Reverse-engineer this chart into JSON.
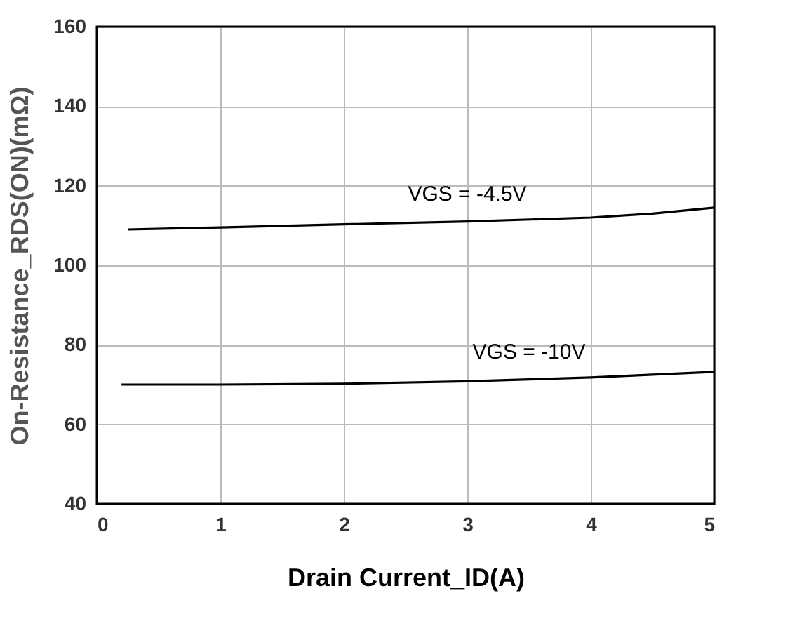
{
  "chart_data": {
    "type": "line",
    "xlabel": "Drain Current_ID(A)",
    "ylabel": "On-Resistance_RDS(ON)(mΩ)",
    "xlim": [
      0,
      5
    ],
    "xticks": [
      0,
      1,
      2,
      3,
      4,
      5
    ],
    "ylim": [
      40,
      160
    ],
    "yticks": [
      40,
      60,
      80,
      100,
      120,
      140,
      160
    ],
    "grid": true,
    "marker": "none",
    "line_style": "solid",
    "series": [
      {
        "color": "#000000",
        "x": [
          0.25,
          1,
          2,
          3,
          4,
          4.5,
          5
        ],
        "values": [
          109,
          109.5,
          110.3,
          111,
          112,
          113,
          114.5
        ]
      },
      {
        "color": "#000000",
        "x": [
          0.2,
          1,
          2,
          3,
          3.5,
          4,
          4.5,
          5
        ],
        "values": [
          70,
          70,
          70.2,
          70.8,
          71.3,
          71.8,
          72.5,
          73.2
        ]
      }
    ],
    "annotations": [
      "VGS = -4.5V",
      "VGS = -10V"
    ]
  }
}
